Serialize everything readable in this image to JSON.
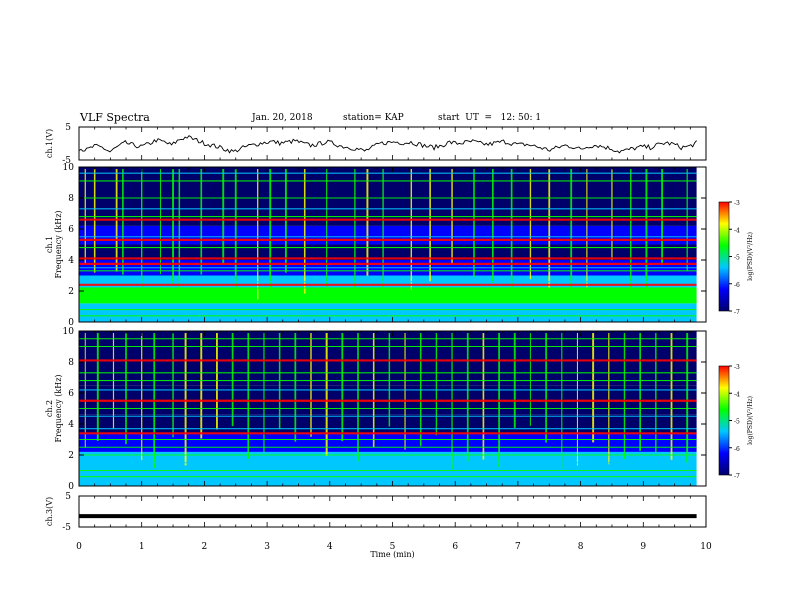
{
  "header": {
    "title": "VLF Spectra",
    "date": "Jan. 20, 2018",
    "station": "station= KAP",
    "start": "start  UT  =   12: 50: 1"
  },
  "chart_data": [
    {
      "type": "line",
      "panel": "ch1-voltage",
      "ylabel": "ch.1(V)",
      "ylim": [
        -5,
        5
      ],
      "yticks": [
        5,
        -5
      ],
      "xlim": [
        0,
        10
      ],
      "series": [
        {
          "values": [
            -1.5,
            -2.0,
            -0.8,
            -1.2,
            -2.5,
            -1.0,
            0.2,
            -0.5,
            -1.0,
            -0.2,
            1.0,
            0.5,
            -0.5,
            1.2,
            2.0,
            1.2,
            0.3,
            -0.4,
            -1.0,
            -1.8,
            -2.5,
            -1.5,
            -0.7,
            -0.2,
            0.3,
            0.6,
            0.1,
            0.4,
            0.8,
            0.0,
            -0.6,
            -0.2,
            0.5,
            0.0,
            -0.8,
            -1.2,
            -1.6,
            -2.3,
            -1.2,
            0.0,
            0.3,
            0.5,
            0.2,
            0.4,
            -0.2,
            -0.8,
            -1.2,
            -0.6,
            0.4,
            0.0,
            0.3,
            0.6,
            0.0,
            -0.3,
            0.2,
            0.6,
            0.1,
            -0.4,
            -0.3,
            -0.8,
            -1.4,
            -2.0,
            -1.2,
            -0.6,
            -1.0,
            -1.8,
            -0.8,
            -0.5,
            -1.0,
            -1.6,
            -2.4,
            -2.0,
            -1.4,
            -1.0,
            -1.2,
            -0.4,
            0.2,
            -0.2,
            -1.2,
            -0.9,
            0.2
          ]
        }
      ]
    },
    {
      "type": "heatmap",
      "panel": "ch1-spectrogram",
      "ylabel_top": "ch.1",
      "ylabel": "Frequency (kHz)",
      "ylim": [
        0,
        10
      ],
      "yticks": [
        "10",
        "8",
        "6",
        "4",
        "2",
        "0"
      ],
      "xlim": [
        0,
        10
      ],
      "colorbar": {
        "label": "log(PSD)(V²/Hz)",
        "range": [
          -7,
          -3
        ],
        "ticks": [
          "-3",
          "-4",
          "-5",
          "-6",
          "-7"
        ]
      },
      "horizontal_lines_khz": [
        0.4,
        0.8,
        1.3,
        2.2,
        2.4,
        2.6,
        3.3,
        3.5,
        3.75,
        4.1,
        4.8,
        5.3,
        5.5,
        6.6,
        6.8,
        7.3,
        8.0,
        9.1,
        9.6
      ],
      "strong_lines_khz": [
        2.4,
        3.75,
        4.1,
        5.3,
        6.6
      ],
      "vertical_bursts_min": [
        0.1,
        0.25,
        0.6,
        0.7,
        1.0,
        1.3,
        1.5,
        1.6,
        1.95,
        2.3,
        2.5,
        2.85,
        3.05,
        3.3,
        3.6,
        3.95,
        4.4,
        4.6,
        4.85,
        5.3,
        5.6,
        5.95,
        6.3,
        6.6,
        6.9,
        7.2,
        7.5,
        7.85,
        8.1,
        8.5,
        8.8,
        9.05,
        9.3,
        9.7
      ]
    },
    {
      "type": "heatmap",
      "panel": "ch2-spectrogram",
      "ylabel_top": "ch.2",
      "ylabel": "Frequency (kHz)",
      "ylim": [
        0,
        10
      ],
      "yticks": [
        "10",
        "8",
        "6",
        "4",
        "2",
        "0"
      ],
      "xlim": [
        0,
        10
      ],
      "colorbar": {
        "label": "log(PSD)(V²/Hz)",
        "range": [
          -7,
          -3
        ],
        "ticks": [
          "-3",
          "-4",
          "-5",
          "-6",
          "-7"
        ]
      },
      "horizontal_lines_khz": [
        0.3,
        0.6,
        1.0,
        1.5,
        2.0,
        2.5,
        3.0,
        3.4,
        3.7,
        4.5,
        5.0,
        5.5,
        6.2,
        6.8,
        7.3,
        8.1,
        9.0,
        9.5
      ],
      "strong_lines_khz": [
        3.4,
        5.5,
        8.1
      ],
      "vertical_bursts_min": [
        0.1,
        0.3,
        0.55,
        0.75,
        1.0,
        1.2,
        1.5,
        1.7,
        1.95,
        2.2,
        2.45,
        2.7,
        2.95,
        3.2,
        3.45,
        3.7,
        3.95,
        4.2,
        4.45,
        4.7,
        4.95,
        5.2,
        5.45,
        5.7,
        5.95,
        6.2,
        6.45,
        6.7,
        6.95,
        7.2,
        7.45,
        7.7,
        7.95,
        8.2,
        8.45,
        8.7,
        8.95,
        9.2,
        9.45,
        9.7
      ]
    },
    {
      "type": "line",
      "panel": "ch3-voltage",
      "ylabel": "ch.3(V)",
      "ylim": [
        -5,
        5
      ],
      "yticks": [
        5,
        -5
      ],
      "xlim": [
        0,
        10
      ],
      "series": [
        {
          "values": [
            -1.5,
            -1.5
          ]
        }
      ]
    }
  ],
  "xaxis": {
    "label": "Time (min)",
    "ticks": [
      "0",
      "1",
      "2",
      "3",
      "4",
      "5",
      "6",
      "7",
      "8",
      "9",
      "10"
    ]
  },
  "colors": {
    "dark_blue": "#00006a",
    "blue": "#0000ff",
    "cyan": "#00c8ff",
    "green": "#00ff00",
    "yellow": "#ffff00",
    "red": "#ff0000"
  }
}
